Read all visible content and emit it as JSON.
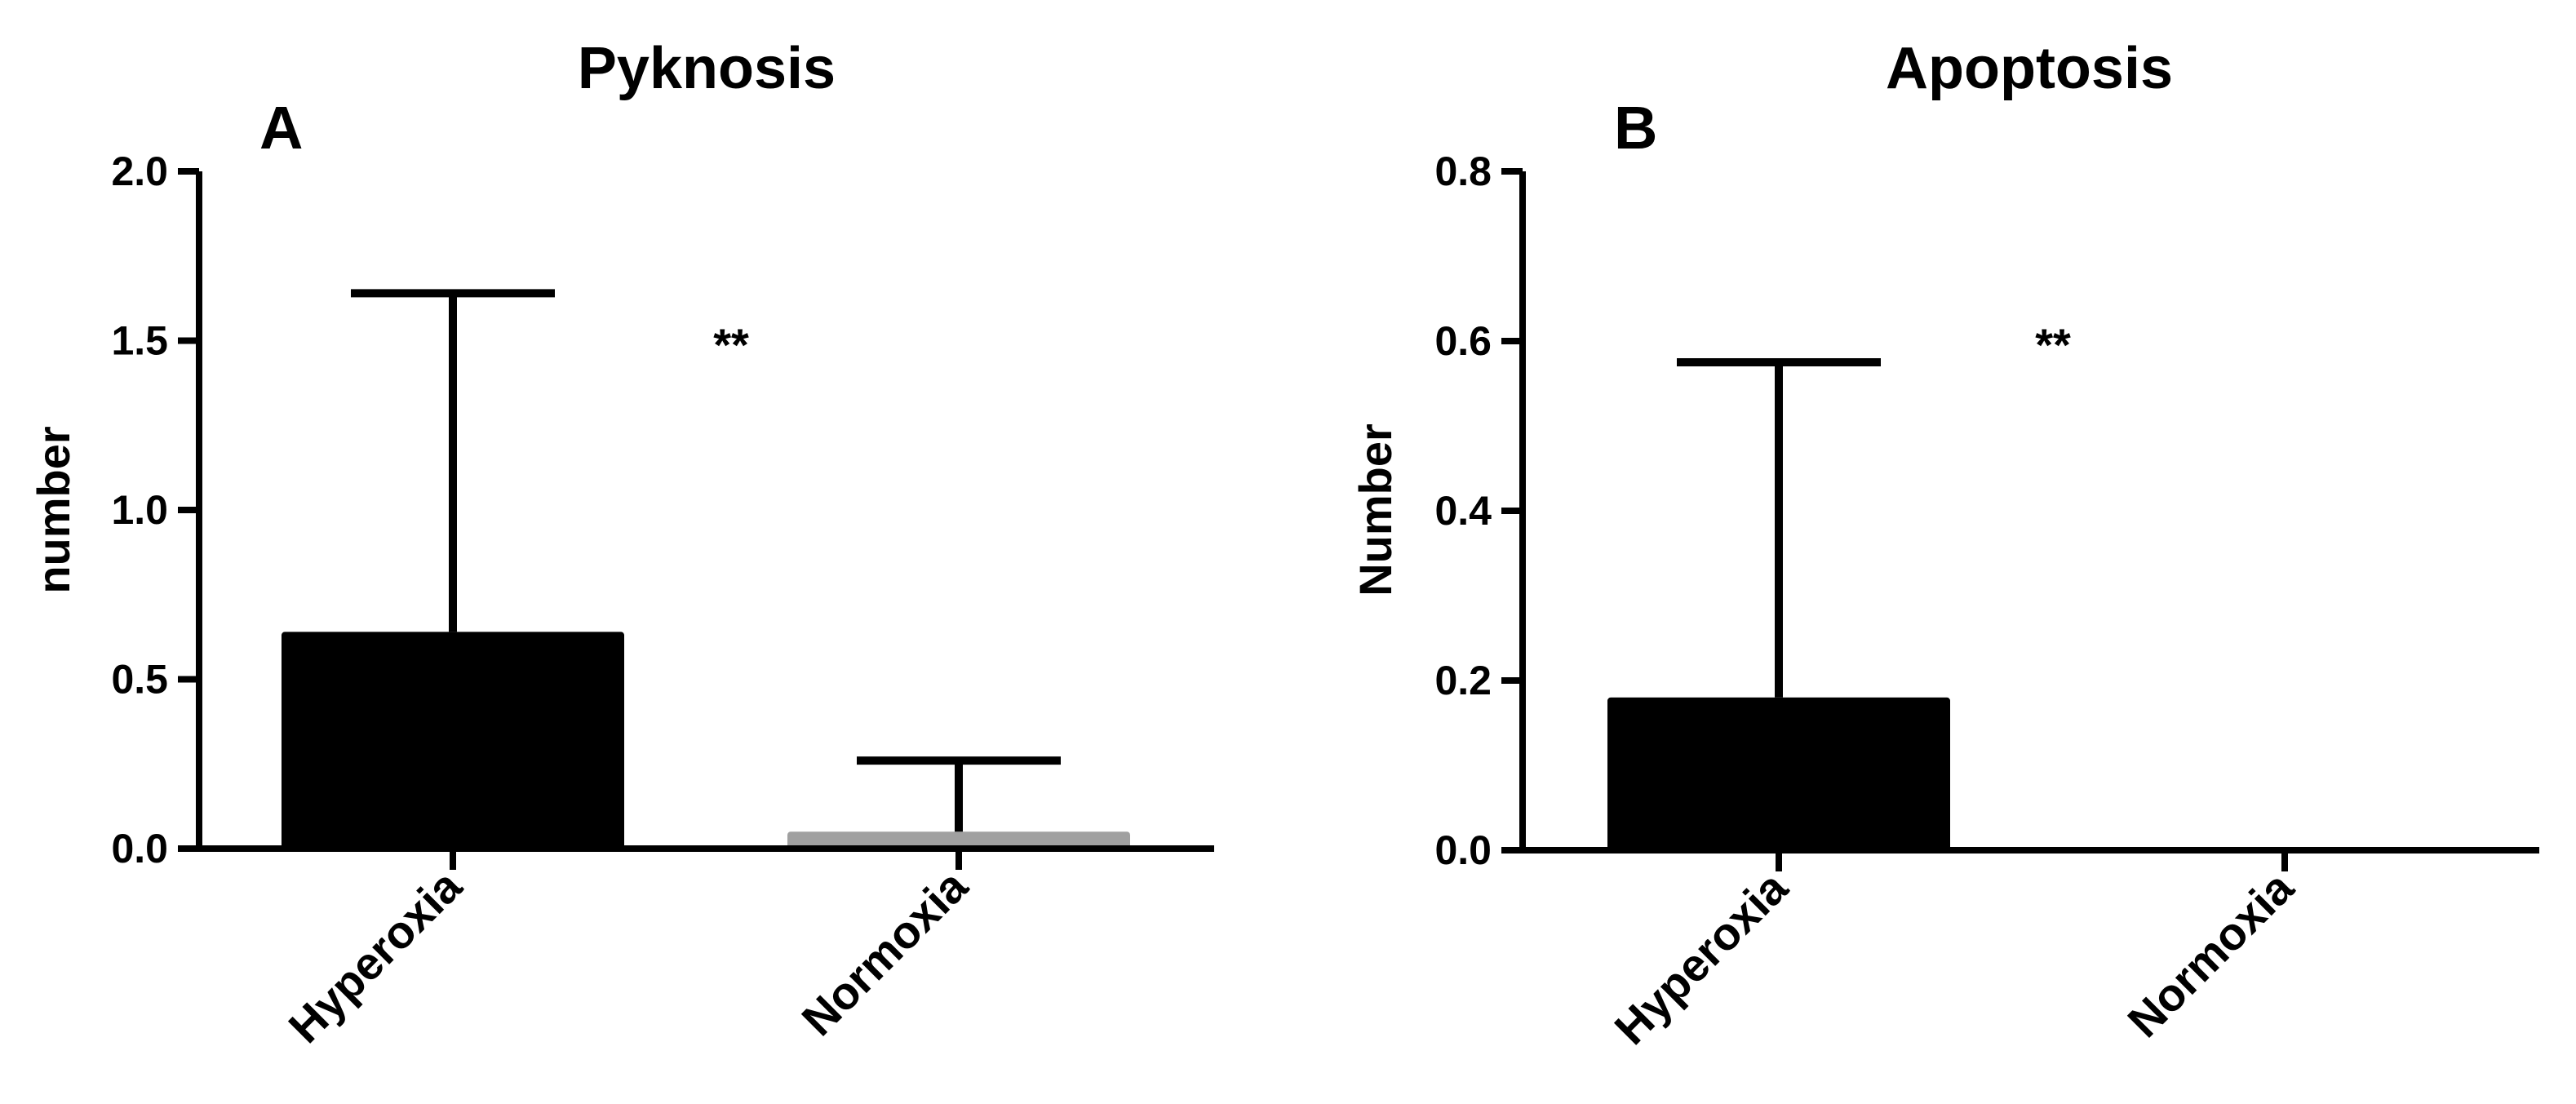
{
  "chart_data": [
    {
      "type": "bar",
      "panel_label": "A",
      "title": "Pyknosis",
      "ylabel": "number",
      "xlabel": "",
      "categories": [
        "Hyperoxia",
        "Normoxia"
      ],
      "values": [
        0.64,
        0.05
      ],
      "error_upper": [
        1.64,
        0.26
      ],
      "bar_colors": [
        "#000000",
        "#a0a0a0"
      ],
      "ylim": [
        0,
        2.0
      ],
      "yticks": [
        0.0,
        0.5,
        1.0,
        1.5,
        2.0
      ],
      "ytick_labels": [
        "0.0",
        "0.5",
        "1.0",
        "1.5",
        "2.0"
      ],
      "annotation": "**",
      "grid": false,
      "legend": "none"
    },
    {
      "type": "bar",
      "panel_label": "B",
      "title": "Apoptosis",
      "ylabel": "Number",
      "xlabel": "",
      "categories": [
        "Hyperoxia",
        "Normoxia"
      ],
      "values": [
        0.18,
        0.0
      ],
      "error_upper": [
        0.575,
        0.0
      ],
      "bar_colors": [
        "#000000",
        "#a0a0a0"
      ],
      "ylim": [
        0,
        0.8
      ],
      "yticks": [
        0.0,
        0.2,
        0.4,
        0.6,
        0.8
      ],
      "ytick_labels": [
        "0.0",
        "0.2",
        "0.4",
        "0.6",
        "0.8"
      ],
      "annotation": "**",
      "grid": false,
      "legend": "none"
    }
  ]
}
